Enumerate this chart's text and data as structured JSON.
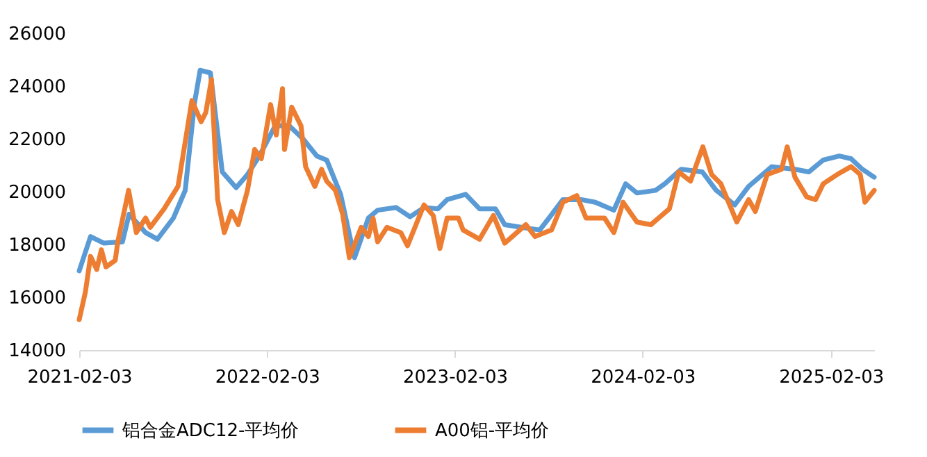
{
  "chart_data": {
    "type": "line",
    "xlim": [
      "2021-02-03",
      "2025-04-28"
    ],
    "xticks": [
      "2021-02-03",
      "2022-02-03",
      "2023-02-03",
      "2024-02-03",
      "2025-02-03"
    ],
    "ylim": [
      14000,
      26000
    ],
    "yticks": [
      14000,
      16000,
      18000,
      20000,
      22000,
      24000,
      26000
    ],
    "grid": false,
    "legend": "bottom",
    "line_style": "solid",
    "marker": "none",
    "series": [
      {
        "name": "铝合金ADC12-平均价",
        "color": "#5b9bd5",
        "x": [
          "2021-02-03",
          "2021-02-25",
          "2021-03-23",
          "2021-04-28",
          "2021-05-11",
          "2021-06-12",
          "2021-07-05",
          "2021-08-05",
          "2021-08-28",
          "2021-09-15",
          "2021-09-26",
          "2021-10-16",
          "2021-11-08",
          "2021-12-05",
          "2021-12-27",
          "2022-01-19",
          "2022-02-19",
          "2022-03-18",
          "2022-04-14",
          "2022-05-11",
          "2022-05-30",
          "2022-06-26",
          "2022-07-23",
          "2022-08-19",
          "2022-09-06",
          "2022-10-12",
          "2022-11-08",
          "2022-12-05",
          "2023-01-01",
          "2023-01-19",
          "2023-02-24",
          "2023-03-23",
          "2023-04-23",
          "2023-05-11",
          "2023-06-12",
          "2023-07-18",
          "2023-08-05",
          "2023-09-01",
          "2023-10-07",
          "2023-11-03",
          "2023-12-09",
          "2024-01-01",
          "2024-01-23",
          "2024-02-28",
          "2024-03-17",
          "2024-04-18",
          "2024-05-29",
          "2024-06-25",
          "2024-07-31",
          "2024-08-27",
          "2024-10-11",
          "2024-11-25",
          "2024-12-22",
          "2025-01-19",
          "2025-02-19",
          "2025-03-14",
          "2025-04-05",
          "2025-04-28"
        ],
        "values": [
          17000,
          18300,
          18050,
          18100,
          19150,
          18450,
          18200,
          19000,
          20050,
          23350,
          24600,
          24500,
          20750,
          20150,
          20650,
          21350,
          22500,
          22500,
          22000,
          21350,
          21200,
          19900,
          17500,
          19000,
          19300,
          19400,
          19050,
          19400,
          19350,
          19700,
          19900,
          19350,
          19350,
          18750,
          18650,
          18550,
          19000,
          19700,
          19700,
          19600,
          19300,
          20300,
          19950,
          20050,
          20300,
          20850,
          20750,
          20050,
          19500,
          20200,
          20950,
          20850,
          20750,
          21200,
          21350,
          21250,
          20850,
          20550
        ]
      },
      {
        "name": "A00铝-平均价",
        "color": "#ed7d31",
        "x": [
          "2021-02-03",
          "2021-02-15",
          "2021-02-25",
          "2021-03-09",
          "2021-03-18",
          "2021-03-27",
          "2021-04-14",
          "2021-04-19",
          "2021-05-10",
          "2021-05-25",
          "2021-06-12",
          "2021-06-21",
          "2021-07-18",
          "2021-08-14",
          "2021-09-10",
          "2021-09-28",
          "2021-10-07",
          "2021-10-18",
          "2021-10-30",
          "2021-11-12",
          "2021-11-26",
          "2021-12-09",
          "2021-12-27",
          "2022-01-10",
          "2022-01-23",
          "2022-02-10",
          "2022-02-21",
          "2022-03-05",
          "2022-03-09",
          "2022-03-23",
          "2022-04-10",
          "2022-04-19",
          "2022-05-07",
          "2022-05-20",
          "2022-05-30",
          "2022-06-16",
          "2022-06-30",
          "2022-07-13",
          "2022-08-05",
          "2022-08-19",
          "2022-08-28",
          "2022-09-06",
          "2022-09-24",
          "2022-10-21",
          "2022-11-03",
          "2022-12-05",
          "2022-12-23",
          "2023-01-05",
          "2023-01-19",
          "2023-02-10",
          "2023-02-19",
          "2023-03-23",
          "2023-04-19",
          "2023-05-11",
          "2023-06-21",
          "2023-07-09",
          "2023-08-10",
          "2023-09-01",
          "2023-09-28",
          "2023-10-16",
          "2023-11-21",
          "2023-12-09",
          "2023-12-27",
          "2024-01-23",
          "2024-02-19",
          "2024-03-26",
          "2024-04-13",
          "2024-05-06",
          "2024-05-30",
          "2024-06-16",
          "2024-07-04",
          "2024-08-04",
          "2024-08-27",
          "2024-09-09",
          "2024-10-02",
          "2024-10-30",
          "2024-11-10",
          "2024-11-25",
          "2024-12-18",
          "2025-01-04",
          "2025-01-19",
          "2025-02-15",
          "2025-03-14",
          "2025-04-01",
          "2025-04-10",
          "2025-04-28"
        ],
        "values": [
          15150,
          16200,
          17550,
          17050,
          17800,
          17150,
          17400,
          18100,
          20050,
          18450,
          19000,
          18650,
          19350,
          20200,
          23450,
          22650,
          23000,
          24250,
          19700,
          18450,
          19250,
          18750,
          20050,
          21600,
          21250,
          23300,
          22150,
          23900,
          21600,
          23200,
          22500,
          20950,
          20200,
          20850,
          20400,
          20050,
          19150,
          17500,
          18650,
          18300,
          19000,
          18100,
          18650,
          18450,
          17950,
          19500,
          19100,
          17850,
          19000,
          19000,
          18550,
          18200,
          19100,
          18050,
          18750,
          18300,
          18550,
          19600,
          19850,
          19000,
          19000,
          18450,
          19600,
          18850,
          18750,
          19350,
          20750,
          20400,
          21700,
          20650,
          20300,
          18850,
          19700,
          19250,
          20650,
          20850,
          21700,
          20550,
          19800,
          19700,
          20300,
          20650,
          20950,
          20650,
          19600,
          20050
        ]
      }
    ]
  }
}
